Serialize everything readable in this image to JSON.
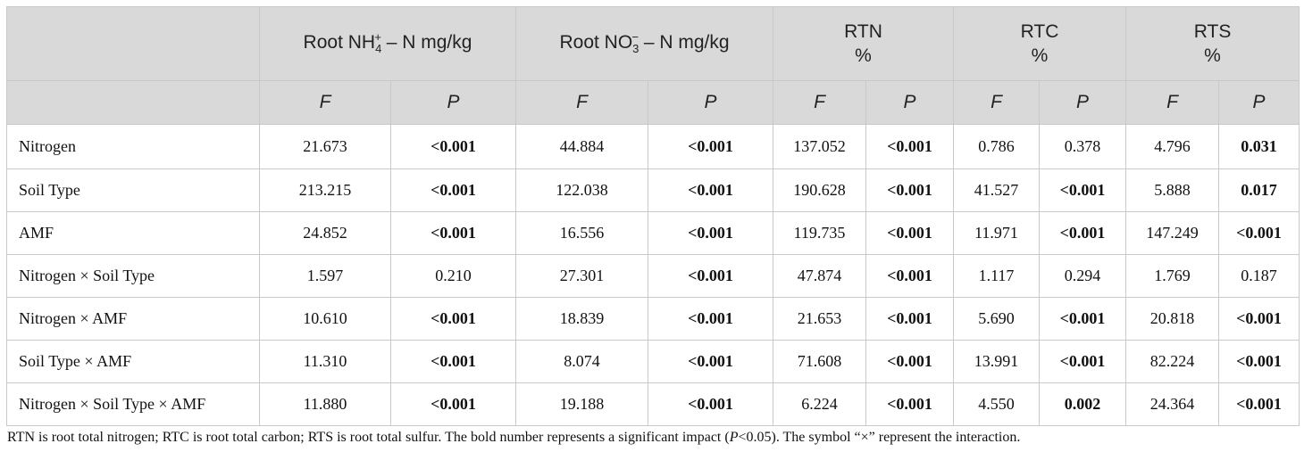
{
  "table": {
    "groups": [
      {
        "pre": "Root NH",
        "sub": "4",
        "sup": "+",
        "post": " – N mg/kg"
      },
      {
        "pre": "Root NO",
        "sub": "3",
        "sup": "−",
        "post": " – N mg/kg"
      },
      {
        "line1": "RTN",
        "line2": "%"
      },
      {
        "line1": "RTC",
        "line2": "%"
      },
      {
        "line1": "RTS",
        "line2": "%"
      }
    ],
    "sub_headers": [
      "F",
      "P",
      "F",
      "P",
      "F",
      "P",
      "F",
      "P",
      "F",
      "P"
    ],
    "rows": [
      {
        "label": "Nitrogen",
        "cells": [
          {
            "v": "21.673",
            "b": false
          },
          {
            "v": "<0.001",
            "b": true
          },
          {
            "v": "44.884",
            "b": false
          },
          {
            "v": "<0.001",
            "b": true
          },
          {
            "v": "137.052",
            "b": false
          },
          {
            "v": "<0.001",
            "b": true
          },
          {
            "v": "0.786",
            "b": false
          },
          {
            "v": "0.378",
            "b": false
          },
          {
            "v": "4.796",
            "b": false
          },
          {
            "v": "0.031",
            "b": true
          }
        ]
      },
      {
        "label": "Soil Type",
        "cells": [
          {
            "v": "213.215",
            "b": false
          },
          {
            "v": "<0.001",
            "b": true
          },
          {
            "v": "122.038",
            "b": false
          },
          {
            "v": "<0.001",
            "b": true
          },
          {
            "v": "190.628",
            "b": false
          },
          {
            "v": "<0.001",
            "b": true
          },
          {
            "v": "41.527",
            "b": false
          },
          {
            "v": "<0.001",
            "b": true
          },
          {
            "v": "5.888",
            "b": false
          },
          {
            "v": "0.017",
            "b": true
          }
        ]
      },
      {
        "label": "AMF",
        "cells": [
          {
            "v": "24.852",
            "b": false
          },
          {
            "v": "<0.001",
            "b": true
          },
          {
            "v": "16.556",
            "b": false
          },
          {
            "v": "<0.001",
            "b": true
          },
          {
            "v": "119.735",
            "b": false
          },
          {
            "v": "<0.001",
            "b": true
          },
          {
            "v": "11.971",
            "b": false
          },
          {
            "v": "<0.001",
            "b": true
          },
          {
            "v": "147.249",
            "b": false
          },
          {
            "v": "<0.001",
            "b": true
          }
        ]
      },
      {
        "label": "Nitrogen × Soil Type",
        "cells": [
          {
            "v": "1.597",
            "b": false
          },
          {
            "v": "0.210",
            "b": false
          },
          {
            "v": "27.301",
            "b": false
          },
          {
            "v": "<0.001",
            "b": true
          },
          {
            "v": "47.874",
            "b": false
          },
          {
            "v": "<0.001",
            "b": true
          },
          {
            "v": "1.117",
            "b": false
          },
          {
            "v": "0.294",
            "b": false
          },
          {
            "v": "1.769",
            "b": false
          },
          {
            "v": "0.187",
            "b": false
          }
        ]
      },
      {
        "label": "Nitrogen × AMF",
        "cells": [
          {
            "v": "10.610",
            "b": false
          },
          {
            "v": "<0.001",
            "b": true
          },
          {
            "v": "18.839",
            "b": false
          },
          {
            "v": "<0.001",
            "b": true
          },
          {
            "v": "21.653",
            "b": false
          },
          {
            "v": "<0.001",
            "b": true
          },
          {
            "v": "5.690",
            "b": false
          },
          {
            "v": "<0.001",
            "b": true
          },
          {
            "v": "20.818",
            "b": false
          },
          {
            "v": "<0.001",
            "b": true
          }
        ]
      },
      {
        "label": "Soil Type × AMF",
        "cells": [
          {
            "v": "11.310",
            "b": false
          },
          {
            "v": "<0.001",
            "b": true
          },
          {
            "v": "8.074",
            "b": false
          },
          {
            "v": "<0.001",
            "b": true
          },
          {
            "v": "71.608",
            "b": false
          },
          {
            "v": "<0.001",
            "b": true
          },
          {
            "v": "13.991",
            "b": false
          },
          {
            "v": "<0.001",
            "b": true
          },
          {
            "v": "82.224",
            "b": false
          },
          {
            "v": "<0.001",
            "b": true
          }
        ]
      },
      {
        "label": "Nitrogen × Soil Type × AMF",
        "cells": [
          {
            "v": "11.880",
            "b": false
          },
          {
            "v": "<0.001",
            "b": true
          },
          {
            "v": "19.188",
            "b": false
          },
          {
            "v": "<0.001",
            "b": true
          },
          {
            "v": "6.224",
            "b": false
          },
          {
            "v": "<0.001",
            "b": true
          },
          {
            "v": "4.550",
            "b": false
          },
          {
            "v": "0.002",
            "b": true
          },
          {
            "v": "24.364",
            "b": false
          },
          {
            "v": "<0.001",
            "b": true
          }
        ]
      }
    ]
  },
  "footnote": {
    "part1": "RTN is root total nitrogen; RTC is root total carbon; RTS is root total sulfur. The bold number represents a significant impact (",
    "part2": "P",
    "part3": "<0.05). The symbol “×” represent the interaction."
  }
}
